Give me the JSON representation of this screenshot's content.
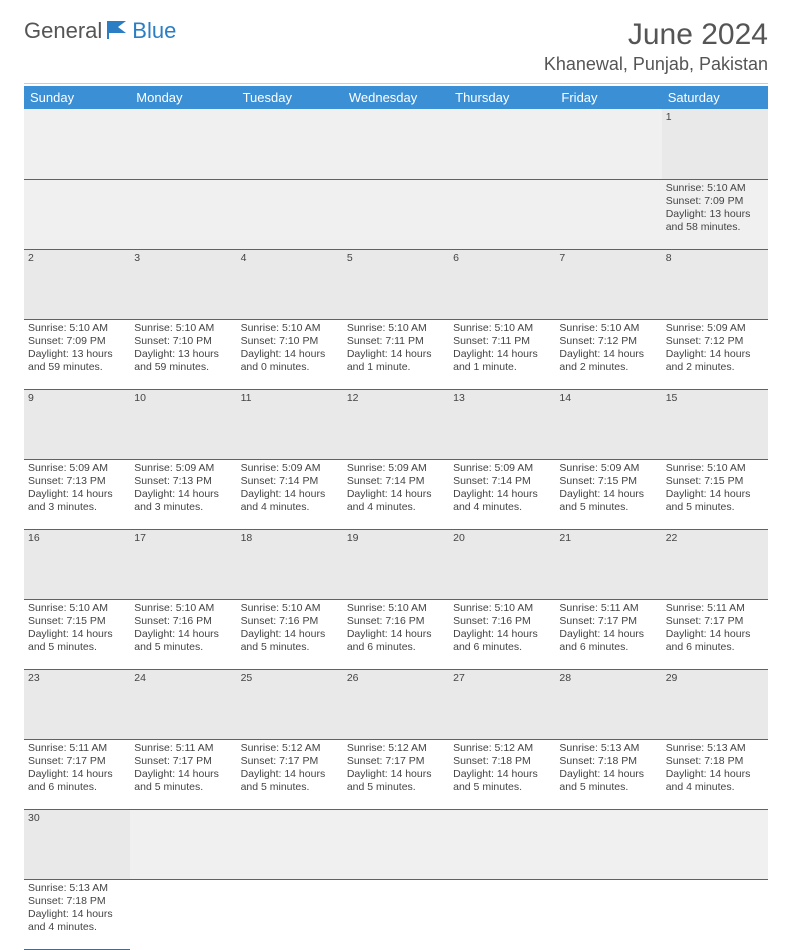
{
  "brand": {
    "part1": "General",
    "part2": "Blue"
  },
  "title": "June 2024",
  "location": "Khanewal, Punjab, Pakistan",
  "colors": {
    "header_bg": "#3b8fd4",
    "header_text": "#ffffff",
    "row_border": "#2b6faf",
    "daynum_bg": "#e9e9e9",
    "brand_blue": "#2b7ec4"
  },
  "weekdays": [
    "Sunday",
    "Monday",
    "Tuesday",
    "Wednesday",
    "Thursday",
    "Friday",
    "Saturday"
  ],
  "weeks": [
    {
      "nums": [
        "",
        "",
        "",
        "",
        "",
        "",
        "1"
      ],
      "cells": [
        null,
        null,
        null,
        null,
        null,
        null,
        {
          "sr": "Sunrise: 5:10 AM",
          "ss": "Sunset: 7:09 PM",
          "dl1": "Daylight: 13 hours",
          "dl2": "and 58 minutes."
        }
      ]
    },
    {
      "nums": [
        "2",
        "3",
        "4",
        "5",
        "6",
        "7",
        "8"
      ],
      "cells": [
        {
          "sr": "Sunrise: 5:10 AM",
          "ss": "Sunset: 7:09 PM",
          "dl1": "Daylight: 13 hours",
          "dl2": "and 59 minutes."
        },
        {
          "sr": "Sunrise: 5:10 AM",
          "ss": "Sunset: 7:10 PM",
          "dl1": "Daylight: 13 hours",
          "dl2": "and 59 minutes."
        },
        {
          "sr": "Sunrise: 5:10 AM",
          "ss": "Sunset: 7:10 PM",
          "dl1": "Daylight: 14 hours",
          "dl2": "and 0 minutes."
        },
        {
          "sr": "Sunrise: 5:10 AM",
          "ss": "Sunset: 7:11 PM",
          "dl1": "Daylight: 14 hours",
          "dl2": "and 1 minute."
        },
        {
          "sr": "Sunrise: 5:10 AM",
          "ss": "Sunset: 7:11 PM",
          "dl1": "Daylight: 14 hours",
          "dl2": "and 1 minute."
        },
        {
          "sr": "Sunrise: 5:10 AM",
          "ss": "Sunset: 7:12 PM",
          "dl1": "Daylight: 14 hours",
          "dl2": "and 2 minutes."
        },
        {
          "sr": "Sunrise: 5:09 AM",
          "ss": "Sunset: 7:12 PM",
          "dl1": "Daylight: 14 hours",
          "dl2": "and 2 minutes."
        }
      ]
    },
    {
      "nums": [
        "9",
        "10",
        "11",
        "12",
        "13",
        "14",
        "15"
      ],
      "cells": [
        {
          "sr": "Sunrise: 5:09 AM",
          "ss": "Sunset: 7:13 PM",
          "dl1": "Daylight: 14 hours",
          "dl2": "and 3 minutes."
        },
        {
          "sr": "Sunrise: 5:09 AM",
          "ss": "Sunset: 7:13 PM",
          "dl1": "Daylight: 14 hours",
          "dl2": "and 3 minutes."
        },
        {
          "sr": "Sunrise: 5:09 AM",
          "ss": "Sunset: 7:14 PM",
          "dl1": "Daylight: 14 hours",
          "dl2": "and 4 minutes."
        },
        {
          "sr": "Sunrise: 5:09 AM",
          "ss": "Sunset: 7:14 PM",
          "dl1": "Daylight: 14 hours",
          "dl2": "and 4 minutes."
        },
        {
          "sr": "Sunrise: 5:09 AM",
          "ss": "Sunset: 7:14 PM",
          "dl1": "Daylight: 14 hours",
          "dl2": "and 4 minutes."
        },
        {
          "sr": "Sunrise: 5:09 AM",
          "ss": "Sunset: 7:15 PM",
          "dl1": "Daylight: 14 hours",
          "dl2": "and 5 minutes."
        },
        {
          "sr": "Sunrise: 5:10 AM",
          "ss": "Sunset: 7:15 PM",
          "dl1": "Daylight: 14 hours",
          "dl2": "and 5 minutes."
        }
      ]
    },
    {
      "nums": [
        "16",
        "17",
        "18",
        "19",
        "20",
        "21",
        "22"
      ],
      "cells": [
        {
          "sr": "Sunrise: 5:10 AM",
          "ss": "Sunset: 7:15 PM",
          "dl1": "Daylight: 14 hours",
          "dl2": "and 5 minutes."
        },
        {
          "sr": "Sunrise: 5:10 AM",
          "ss": "Sunset: 7:16 PM",
          "dl1": "Daylight: 14 hours",
          "dl2": "and 5 minutes."
        },
        {
          "sr": "Sunrise: 5:10 AM",
          "ss": "Sunset: 7:16 PM",
          "dl1": "Daylight: 14 hours",
          "dl2": "and 5 minutes."
        },
        {
          "sr": "Sunrise: 5:10 AM",
          "ss": "Sunset: 7:16 PM",
          "dl1": "Daylight: 14 hours",
          "dl2": "and 6 minutes."
        },
        {
          "sr": "Sunrise: 5:10 AM",
          "ss": "Sunset: 7:16 PM",
          "dl1": "Daylight: 14 hours",
          "dl2": "and 6 minutes."
        },
        {
          "sr": "Sunrise: 5:11 AM",
          "ss": "Sunset: 7:17 PM",
          "dl1": "Daylight: 14 hours",
          "dl2": "and 6 minutes."
        },
        {
          "sr": "Sunrise: 5:11 AM",
          "ss": "Sunset: 7:17 PM",
          "dl1": "Daylight: 14 hours",
          "dl2": "and 6 minutes."
        }
      ]
    },
    {
      "nums": [
        "23",
        "24",
        "25",
        "26",
        "27",
        "28",
        "29"
      ],
      "cells": [
        {
          "sr": "Sunrise: 5:11 AM",
          "ss": "Sunset: 7:17 PM",
          "dl1": "Daylight: 14 hours",
          "dl2": "and 6 minutes."
        },
        {
          "sr": "Sunrise: 5:11 AM",
          "ss": "Sunset: 7:17 PM",
          "dl1": "Daylight: 14 hours",
          "dl2": "and 5 minutes."
        },
        {
          "sr": "Sunrise: 5:12 AM",
          "ss": "Sunset: 7:17 PM",
          "dl1": "Daylight: 14 hours",
          "dl2": "and 5 minutes."
        },
        {
          "sr": "Sunrise: 5:12 AM",
          "ss": "Sunset: 7:17 PM",
          "dl1": "Daylight: 14 hours",
          "dl2": "and 5 minutes."
        },
        {
          "sr": "Sunrise: 5:12 AM",
          "ss": "Sunset: 7:18 PM",
          "dl1": "Daylight: 14 hours",
          "dl2": "and 5 minutes."
        },
        {
          "sr": "Sunrise: 5:13 AM",
          "ss": "Sunset: 7:18 PM",
          "dl1": "Daylight: 14 hours",
          "dl2": "and 5 minutes."
        },
        {
          "sr": "Sunrise: 5:13 AM",
          "ss": "Sunset: 7:18 PM",
          "dl1": "Daylight: 14 hours",
          "dl2": "and 4 minutes."
        }
      ]
    },
    {
      "nums": [
        "30",
        "",
        "",
        "",
        "",
        "",
        ""
      ],
      "cells": [
        {
          "sr": "Sunrise: 5:13 AM",
          "ss": "Sunset: 7:18 PM",
          "dl1": "Daylight: 14 hours",
          "dl2": "and 4 minutes."
        },
        null,
        null,
        null,
        null,
        null,
        null
      ]
    }
  ]
}
